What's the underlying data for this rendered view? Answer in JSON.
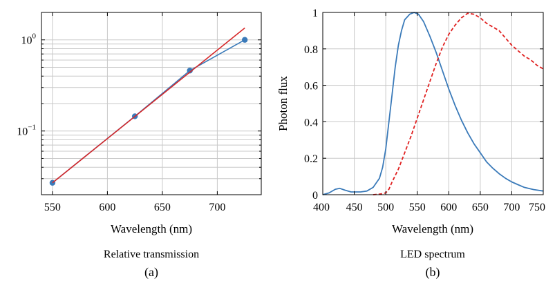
{
  "chart_data": [
    {
      "type": "line",
      "caption": "Relative transmission",
      "sublabel": "(a)",
      "xlabel": "Wavelength (nm)",
      "ylabel": "",
      "xlim": [
        540,
        740
      ],
      "ylim": [
        0.02,
        2.0
      ],
      "yscale": "log",
      "grid": true,
      "xticks": [
        550,
        600,
        650,
        700
      ],
      "xtick_labels": [
        "550",
        "600",
        "650",
        "700"
      ],
      "yticks": [
        0.1,
        1.0
      ],
      "ytick_labels": [
        {
          "base": "10",
          "exp": "−1"
        },
        {
          "base": "10",
          "exp": "0"
        }
      ],
      "series": [
        {
          "color": "#3a7ab9",
          "marker": "circle",
          "points": [
            {
              "x": 550,
              "y": 0.027
            },
            {
              "x": 625,
              "y": 0.145
            },
            {
              "x": 675,
              "y": 0.46
            },
            {
              "x": 725,
              "y": 1.0
            }
          ]
        },
        {
          "color": "#d62728",
          "marker": "none",
          "points": [
            {
              "x": 550,
              "y": 0.027
            },
            {
              "x": 725,
              "y": 1.35
            }
          ]
        }
      ]
    },
    {
      "type": "line",
      "caption": "LED spectrum",
      "sublabel": "(b)",
      "xlabel": "Wavelength (nm)",
      "ylabel": "Photon flux",
      "xlim": [
        400,
        750
      ],
      "ylim": [
        0,
        1
      ],
      "grid": true,
      "xticks": [
        400,
        450,
        500,
        550,
        600,
        650,
        700,
        750
      ],
      "xtick_labels": [
        "400",
        "450",
        "500",
        "550",
        "600",
        "650",
        "700",
        "750"
      ],
      "yticks": [
        0,
        0.2,
        0.4,
        0.6,
        0.8,
        1
      ],
      "ytick_labels": [
        "0",
        "0.2",
        "0.4",
        "0.6",
        "0.8",
        "1"
      ],
      "series": [
        {
          "color": "#3a7ab9",
          "style": "solid",
          "points": [
            {
              "x": 400,
              "y": 0.0
            },
            {
              "x": 410,
              "y": 0.01
            },
            {
              "x": 420,
              "y": 0.03
            },
            {
              "x": 427,
              "y": 0.035
            },
            {
              "x": 435,
              "y": 0.025
            },
            {
              "x": 445,
              "y": 0.015
            },
            {
              "x": 460,
              "y": 0.015
            },
            {
              "x": 470,
              "y": 0.02
            },
            {
              "x": 480,
              "y": 0.04
            },
            {
              "x": 490,
              "y": 0.09
            },
            {
              "x": 495,
              "y": 0.15
            },
            {
              "x": 500,
              "y": 0.25
            },
            {
              "x": 505,
              "y": 0.4
            },
            {
              "x": 510,
              "y": 0.55
            },
            {
              "x": 515,
              "y": 0.7
            },
            {
              "x": 520,
              "y": 0.82
            },
            {
              "x": 525,
              "y": 0.9
            },
            {
              "x": 530,
              "y": 0.96
            },
            {
              "x": 538,
              "y": 0.99
            },
            {
              "x": 545,
              "y": 1.0
            },
            {
              "x": 552,
              "y": 0.99
            },
            {
              "x": 560,
              "y": 0.95
            },
            {
              "x": 570,
              "y": 0.87
            },
            {
              "x": 580,
              "y": 0.78
            },
            {
              "x": 590,
              "y": 0.68
            },
            {
              "x": 600,
              "y": 0.58
            },
            {
              "x": 610,
              "y": 0.49
            },
            {
              "x": 620,
              "y": 0.41
            },
            {
              "x": 630,
              "y": 0.34
            },
            {
              "x": 640,
              "y": 0.28
            },
            {
              "x": 650,
              "y": 0.23
            },
            {
              "x": 660,
              "y": 0.18
            },
            {
              "x": 670,
              "y": 0.145
            },
            {
              "x": 680,
              "y": 0.115
            },
            {
              "x": 690,
              "y": 0.09
            },
            {
              "x": 700,
              "y": 0.07
            },
            {
              "x": 710,
              "y": 0.055
            },
            {
              "x": 720,
              "y": 0.04
            },
            {
              "x": 735,
              "y": 0.028
            },
            {
              "x": 750,
              "y": 0.02
            }
          ]
        },
        {
          "color": "#e02020",
          "style": "dashed",
          "points": [
            {
              "x": 480,
              "y": 0.0
            },
            {
              "x": 490,
              "y": 0.003
            },
            {
              "x": 500,
              "y": 0.01
            },
            {
              "x": 505,
              "y": 0.03
            },
            {
              "x": 510,
              "y": 0.07
            },
            {
              "x": 520,
              "y": 0.14
            },
            {
              "x": 530,
              "y": 0.23
            },
            {
              "x": 540,
              "y": 0.32
            },
            {
              "x": 550,
              "y": 0.42
            },
            {
              "x": 560,
              "y": 0.52
            },
            {
              "x": 570,
              "y": 0.62
            },
            {
              "x": 580,
              "y": 0.72
            },
            {
              "x": 590,
              "y": 0.81
            },
            {
              "x": 600,
              "y": 0.88
            },
            {
              "x": 610,
              "y": 0.93
            },
            {
              "x": 620,
              "y": 0.97
            },
            {
              "x": 630,
              "y": 0.995
            },
            {
              "x": 640,
              "y": 0.99
            },
            {
              "x": 650,
              "y": 0.97
            },
            {
              "x": 660,
              "y": 0.94
            },
            {
              "x": 670,
              "y": 0.92
            },
            {
              "x": 680,
              "y": 0.9
            },
            {
              "x": 690,
              "y": 0.86
            },
            {
              "x": 700,
              "y": 0.82
            },
            {
              "x": 710,
              "y": 0.79
            },
            {
              "x": 720,
              "y": 0.76
            },
            {
              "x": 730,
              "y": 0.74
            },
            {
              "x": 740,
              "y": 0.71
            },
            {
              "x": 750,
              "y": 0.69
            }
          ]
        }
      ]
    }
  ]
}
